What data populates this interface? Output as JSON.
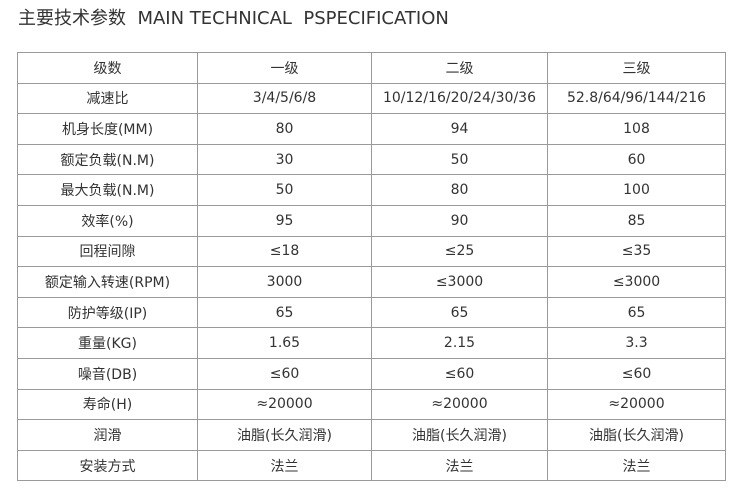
{
  "header": {
    "title": "主要技术参数  MAIN TECHNICAL  PSPECIFICATION"
  },
  "table": {
    "columns": [
      "级数",
      "一级",
      "二级",
      "三级"
    ],
    "rows": [
      [
        "减速比",
        "3/4/5/6/8",
        "10/12/16/20/24/30/36",
        "52.8/64/96/144/216"
      ],
      [
        "机身长度(MM)",
        "80",
        "94",
        "108"
      ],
      [
        "额定负载(N.M)",
        "30",
        "50",
        "60"
      ],
      [
        "最大负载(N.M)",
        "50",
        "80",
        "100"
      ],
      [
        "效率(%)",
        "95",
        "90",
        "85"
      ],
      [
        "回程间隙",
        "≤18",
        "≤25",
        "≤35"
      ],
      [
        "额定输入转速(RPM)",
        "3000",
        "≤3000",
        "≤3000"
      ],
      [
        "防护等级(IP)",
        "65",
        "65",
        "65"
      ],
      [
        "重量(KG)",
        "1.65",
        "2.15",
        "3.3"
      ],
      [
        "噪音(DB)",
        "≤60",
        "≤60",
        "≤60"
      ],
      [
        "寿命(H)",
        "≈20000",
        "≈20000",
        "≈20000"
      ],
      [
        "润滑",
        "油脂(长久润滑)",
        "油脂(长久润滑)",
        "油脂(长久润滑)"
      ],
      [
        "安装方式",
        "法兰",
        "法兰",
        "法兰"
      ]
    ]
  }
}
